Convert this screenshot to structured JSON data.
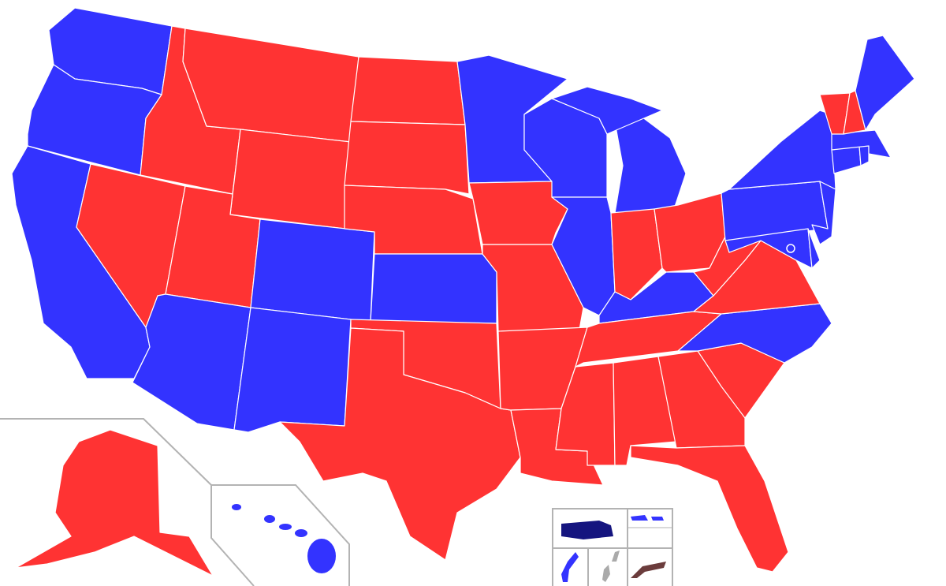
{
  "colors": {
    "blue": "#3333FF",
    "red": "#FF3333",
    "navy": "#15157F",
    "gray": "#AAAAAA",
    "brown": "#6B3C3C",
    "inset_border": "#B3B3B3"
  },
  "state_fills": {
    "WA": "blue",
    "OR": "blue",
    "CA": "blue",
    "NV": "red",
    "ID": "red",
    "MT": "red",
    "WY": "red",
    "UT": "red",
    "AZ": "blue",
    "CO": "blue",
    "NM": "blue",
    "ND": "red",
    "SD": "red",
    "NE": "red",
    "KS": "blue",
    "OK": "red",
    "TX": "red",
    "MN": "blue",
    "IA": "red",
    "MO": "red",
    "AR": "red",
    "LA": "red",
    "WI": "blue",
    "IL": "blue",
    "MI": "blue",
    "MIU": "blue",
    "IN": "red",
    "OH": "red",
    "KY": "blue",
    "TN": "red",
    "MS": "red",
    "AL": "red",
    "GA": "red",
    "FL": "red",
    "SC": "red",
    "NC": "blue",
    "VA": "red",
    "WV": "red",
    "PA": "blue",
    "NY": "blue",
    "MD": "blue",
    "DE": "blue",
    "NJ": "blue",
    "CT": "blue",
    "RI": "blue",
    "MA": "blue",
    "VT": "red",
    "NH": "red",
    "ME": "blue",
    "AK": "red",
    "HI": "blue",
    "DC": "blue"
  },
  "territory_fills": {
    "PR": "navy",
    "VI": "blue",
    "VI2": "blue",
    "GU": "blue",
    "MP": "gray",
    "AS": "brown"
  }
}
